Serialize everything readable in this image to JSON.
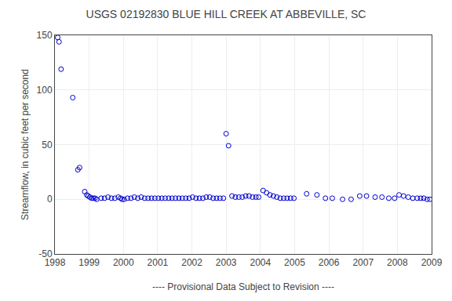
{
  "chart_data": {
    "type": "scatter",
    "title": "USGS 02192830 BLUE HILL CREEK AT ABBEVILLE, SC",
    "ylabel": "Streamflow, in cubic feet per second",
    "xlabel": "---- Provisional Data Subject to Revision ----",
    "x": [
      1998.08,
      1998.12,
      1998.18,
      1998.52,
      1998.67,
      1998.72,
      1998.87,
      1998.93,
      1998.97,
      1999.02,
      1999.07,
      1999.12,
      1999.17,
      1999.22,
      1999.35,
      1999.45,
      1999.55,
      1999.65,
      1999.75,
      1999.85,
      1999.92,
      1999.96,
      2000.02,
      2000.12,
      2000.22,
      2000.32,
      2000.42,
      2000.52,
      2000.62,
      2000.72,
      2000.82,
      2000.92,
      2001.02,
      2001.12,
      2001.22,
      2001.32,
      2001.42,
      2001.52,
      2001.62,
      2001.72,
      2001.82,
      2001.92,
      2002.02,
      2002.12,
      2002.22,
      2002.32,
      2002.42,
      2002.52,
      2002.62,
      2002.72,
      2002.82,
      2002.92,
      2003.0,
      2003.07,
      2003.17,
      2003.27,
      2003.37,
      2003.47,
      2003.57,
      2003.67,
      2003.77,
      2003.87,
      2003.95,
      2004.08,
      2004.18,
      2004.28,
      2004.38,
      2004.48,
      2004.58,
      2004.68,
      2004.78,
      2004.88,
      2004.98,
      2005.35,
      2005.65,
      2005.9,
      2006.1,
      2006.4,
      2006.65,
      2006.9,
      2007.1,
      2007.35,
      2007.55,
      2007.75,
      2007.92,
      2008.05,
      2008.18,
      2008.32,
      2008.45,
      2008.58,
      2008.68,
      2008.77,
      2008.87,
      2008.95
    ],
    "values": [
      148,
      144,
      119,
      93,
      27,
      29,
      7,
      4,
      3,
      2,
      1,
      1,
      1,
      0,
      1,
      1,
      2,
      1,
      1,
      2,
      1,
      0,
      0,
      1,
      1,
      2,
      1,
      2,
      1,
      1,
      1,
      1,
      1,
      1,
      1,
      1,
      1,
      1,
      1,
      1,
      1,
      1,
      2,
      1,
      1,
      1,
      2,
      2,
      1,
      1,
      1,
      1,
      60,
      49,
      3,
      2,
      2,
      2,
      3,
      3,
      2,
      2,
      2,
      8,
      6,
      4,
      3,
      2,
      1,
      1,
      1,
      1,
      1,
      5,
      4,
      1,
      1,
      0,
      0,
      3,
      3,
      2,
      2,
      1,
      1,
      4,
      3,
      2,
      1,
      1,
      1,
      1,
      0,
      0
    ],
    "color": "#0000CC",
    "marker": "circle-open",
    "xlim": [
      1998,
      2009
    ],
    "ylim": [
      -50,
      150
    ],
    "xticks": [
      1998,
      1999,
      2000,
      2001,
      2002,
      2003,
      2004,
      2005,
      2006,
      2007,
      2008,
      2009
    ],
    "yticks": [
      -50,
      0,
      50,
      100,
      150
    ],
    "grid": true
  }
}
